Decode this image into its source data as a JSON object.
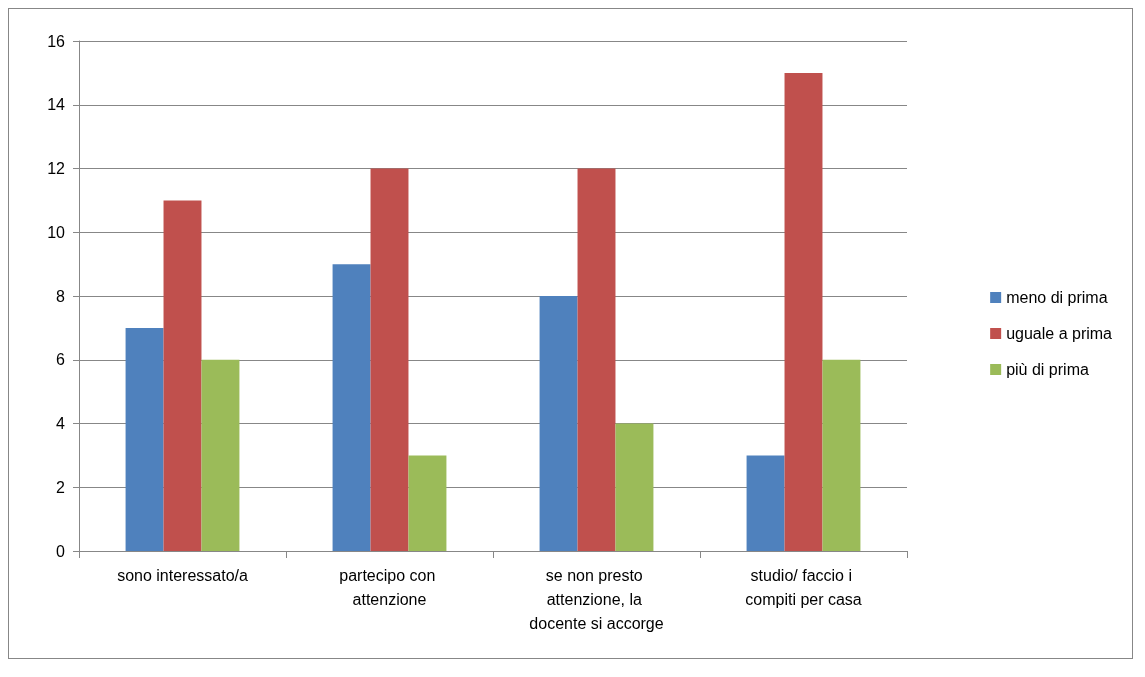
{
  "chart_data": {
    "type": "bar",
    "categories": [
      "sono interessato/a",
      "partecipo con attenzione",
      "se non presto attenzione, la docente si accorge",
      "studio/ faccio i compiti per casa"
    ],
    "series": [
      {
        "name": "meno di prima",
        "color": "#4f81bd",
        "values": [
          7,
          9,
          8,
          3
        ]
      },
      {
        "name": "uguale a prima",
        "color": "#c0504d",
        "values": [
          11,
          12,
          12,
          15
        ]
      },
      {
        "name": "più di prima",
        "color": "#9bbb59",
        "values": [
          6,
          3,
          4,
          6
        ]
      }
    ],
    "ylim": [
      0,
      16
    ],
    "yticks": [
      0,
      2,
      4,
      6,
      8,
      10,
      12,
      14,
      16
    ],
    "grid": "y",
    "legend": "right"
  }
}
